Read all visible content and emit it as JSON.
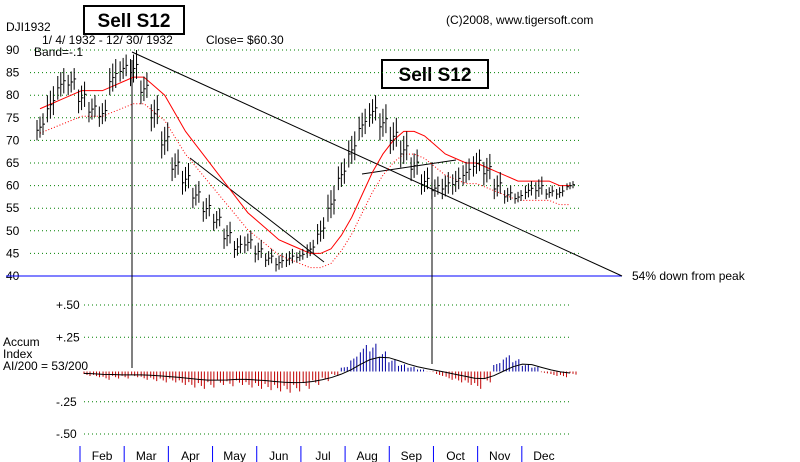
{
  "chart_data": {
    "type": "bar",
    "header": {
      "symbol": "DJI1932",
      "date_range": "1/ 4/ 1932 -  12/ 30/ 1932",
      "close": "Close= $60.30",
      "band": "Band=-.1",
      "copyright": "(C)2008, www.tigersoft.com"
    },
    "signals": [
      {
        "label": "Sell S12",
        "date": "Mar"
      },
      {
        "label": "Sell S12",
        "date": "Sep"
      }
    ],
    "annotation": "54% down from peak",
    "price_axis": {
      "ticks": [
        "90",
        "85",
        "80",
        "75",
        "70",
        "65",
        "60",
        "55",
        "50",
        "45",
        "40"
      ],
      "ylim": [
        40,
        90
      ]
    },
    "months": [
      "Feb",
      "Mar",
      "Apr",
      "May",
      "Jun",
      "Jul",
      "Aug",
      "Sep",
      "Oct",
      "Nov",
      "Dec"
    ],
    "price_weekly": [
      {
        "week": 1,
        "high": 76,
        "low": 70
      },
      {
        "week": 2,
        "high": 82,
        "low": 74
      },
      {
        "week": 3,
        "high": 86,
        "low": 79
      },
      {
        "week": 4,
        "high": 86,
        "low": 80
      },
      {
        "week": 5,
        "high": 83,
        "low": 76
      },
      {
        "week": 6,
        "high": 80,
        "low": 74
      },
      {
        "week": 7,
        "high": 79,
        "low": 73
      },
      {
        "week": 8,
        "high": 88,
        "low": 80
      },
      {
        "week": 9,
        "high": 89,
        "low": 83
      },
      {
        "week": 10,
        "high": 90,
        "low": 82
      },
      {
        "week": 11,
        "high": 85,
        "low": 78
      },
      {
        "week": 12,
        "high": 80,
        "low": 72
      },
      {
        "week": 13,
        "high": 74,
        "low": 66
      },
      {
        "week": 14,
        "high": 68,
        "low": 61
      },
      {
        "week": 15,
        "high": 65,
        "low": 58
      },
      {
        "week": 16,
        "high": 61,
        "low": 55
      },
      {
        "week": 17,
        "high": 58,
        "low": 52
      },
      {
        "week": 18,
        "high": 55,
        "low": 50
      },
      {
        "week": 19,
        "high": 52,
        "low": 46
      },
      {
        "week": 20,
        "high": 49,
        "low": 44
      },
      {
        "week": 21,
        "high": 50,
        "low": 45
      },
      {
        "week": 22,
        "high": 48,
        "low": 43
      },
      {
        "week": 23,
        "high": 46,
        "low": 42
      },
      {
        "week": 24,
        "high": 45,
        "low": 41
      },
      {
        "week": 25,
        "high": 46,
        "low": 42
      },
      {
        "week": 26,
        "high": 46,
        "low": 43
      },
      {
        "week": 27,
        "high": 48,
        "low": 44
      },
      {
        "week": 28,
        "high": 53,
        "low": 47
      },
      {
        "week": 29,
        "high": 60,
        "low": 52
      },
      {
        "week": 30,
        "high": 66,
        "low": 59
      },
      {
        "week": 31,
        "high": 72,
        "low": 64
      },
      {
        "week": 32,
        "high": 77,
        "low": 70
      },
      {
        "week": 33,
        "high": 80,
        "low": 73
      },
      {
        "week": 34,
        "high": 78,
        "low": 70
      },
      {
        "week": 35,
        "high": 75,
        "low": 67
      },
      {
        "week": 36,
        "high": 72,
        "low": 64
      },
      {
        "week": 37,
        "high": 68,
        "low": 61
      },
      {
        "week": 38,
        "high": 64,
        "low": 58
      },
      {
        "week": 39,
        "high": 62,
        "low": 57
      },
      {
        "week": 40,
        "high": 63,
        "low": 57
      },
      {
        "week": 41,
        "high": 64,
        "low": 58
      },
      {
        "week": 42,
        "high": 66,
        "low": 60
      },
      {
        "week": 43,
        "high": 68,
        "low": 62
      },
      {
        "week": 44,
        "high": 67,
        "low": 60
      },
      {
        "week": 45,
        "high": 63,
        "low": 57
      },
      {
        "week": 46,
        "high": 60,
        "low": 56
      },
      {
        "week": 47,
        "high": 59,
        "low": 56
      },
      {
        "week": 48,
        "high": 61,
        "low": 57
      },
      {
        "week": 49,
        "high": 62,
        "low": 57
      },
      {
        "week": 50,
        "high": 60,
        "low": 57
      },
      {
        "week": 51,
        "high": 60,
        "low": 57
      },
      {
        "week": 52,
        "high": 61,
        "low": 59
      }
    ],
    "ma_21": [
      77,
      78,
      79,
      80,
      81,
      81,
      81,
      82,
      83,
      84,
      84,
      82,
      80,
      76,
      72,
      69,
      66,
      63,
      60,
      57,
      54,
      52,
      50,
      48,
      47,
      46,
      45,
      45,
      46,
      49,
      53,
      58,
      63,
      67,
      70,
      72,
      72,
      71,
      69,
      67,
      66,
      65,
      65,
      64,
      63,
      62,
      61,
      61,
      61,
      61,
      60,
      60
    ],
    "indicator": {
      "name_lines": [
        "Accum",
        "Index",
        "AI/200 = 53/200"
      ],
      "ticks": [
        "+.50",
        "+.25",
        "-.25",
        "-.50"
      ],
      "ylim": [
        -0.5,
        0.5
      ],
      "weekly_values": [
        -0.05,
        -0.06,
        -0.08,
        -0.07,
        -0.07,
        -0.06,
        -0.08,
        -0.09,
        -0.1,
        -0.1,
        -0.12,
        -0.14,
        -0.15,
        -0.14,
        -0.12,
        -0.13,
        -0.12,
        -0.14,
        -0.15,
        -0.16,
        -0.17,
        -0.18,
        -0.17,
        -0.15,
        -0.12,
        -0.09,
        -0.05,
        0.02,
        0.1,
        0.19,
        0.2,
        0.14,
        0.08,
        0.04,
        0.02,
        0.0,
        -0.02,
        -0.05,
        -0.08,
        -0.1,
        -0.12,
        -0.15,
        -0.1,
        0.05,
        0.11,
        0.08,
        0.04,
        0.02,
        -0.03,
        -0.05,
        -0.06,
        -0.04
      ]
    },
    "colors": {
      "price_bars": "#000000",
      "ma_red": "#ff0000",
      "band_lower": "#ff0000",
      "grid": "#008000",
      "baseline": "#0000ff",
      "indicator_pos": "#0000a0",
      "indicator_neg": "#c00000",
      "axis_blue": "#0000ff"
    }
  }
}
